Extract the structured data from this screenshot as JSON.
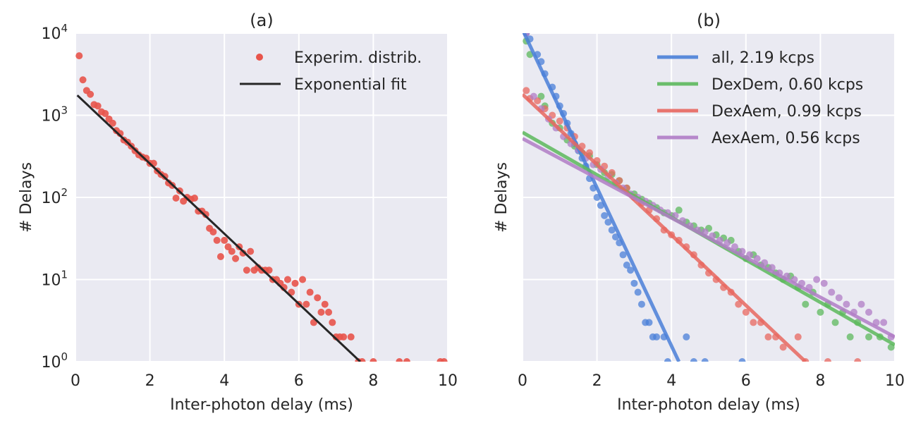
{
  "chart_data": [
    {
      "type": "scatter",
      "title": "(a)",
      "xlabel": "Inter-photon delay (ms)",
      "ylabel": "# Delays",
      "xlim": [
        0,
        10
      ],
      "ylim": [
        1,
        10000
      ],
      "yscale": "log",
      "grid": true,
      "legend_position": "top-right",
      "x_ticks": [
        "0",
        "2",
        "4",
        "6",
        "8",
        "10"
      ],
      "y_ticks": [
        {
          "value": 1,
          "base": "10",
          "exp": "0"
        },
        {
          "value": 10,
          "base": "10",
          "exp": "1"
        },
        {
          "value": 100,
          "base": "10",
          "exp": "2"
        },
        {
          "value": 1000,
          "base": "10",
          "exp": "3"
        },
        {
          "value": 10000,
          "base": "10",
          "exp": "4"
        }
      ],
      "series": [
        {
          "name": "Experim. distrib.",
          "kind": "points",
          "color": "#e8544b",
          "points": [
            [
              0.1,
              5300
            ],
            [
              0.2,
              2700
            ],
            [
              0.3,
              2000
            ],
            [
              0.4,
              1800
            ],
            [
              0.5,
              1350
            ],
            [
              0.6,
              1300
            ],
            [
              0.7,
              1100
            ],
            [
              0.8,
              1050
            ],
            [
              0.9,
              900
            ],
            [
              1.0,
              800
            ],
            [
              1.1,
              650
            ],
            [
              1.2,
              600
            ],
            [
              1.3,
              500
            ],
            [
              1.4,
              470
            ],
            [
              1.5,
              420
            ],
            [
              1.6,
              370
            ],
            [
              1.7,
              330
            ],
            [
              1.8,
              310
            ],
            [
              1.9,
              300
            ],
            [
              2.0,
              260
            ],
            [
              2.1,
              260
            ],
            [
              2.2,
              210
            ],
            [
              2.3,
              190
            ],
            [
              2.4,
              180
            ],
            [
              2.5,
              150
            ],
            [
              2.6,
              140
            ],
            [
              2.7,
              98
            ],
            [
              2.8,
              120
            ],
            [
              2.9,
              90
            ],
            [
              3.0,
              100
            ],
            [
              3.1,
              95
            ],
            [
              3.2,
              98
            ],
            [
              3.3,
              68
            ],
            [
              3.4,
              68
            ],
            [
              3.5,
              62
            ],
            [
              3.6,
              42
            ],
            [
              3.7,
              38
            ],
            [
              3.8,
              30
            ],
            [
              3.9,
              19
            ],
            [
              4.0,
              30
            ],
            [
              4.1,
              25
            ],
            [
              4.2,
              22
            ],
            [
              4.3,
              18
            ],
            [
              4.4,
              25
            ],
            [
              4.5,
              21
            ],
            [
              4.6,
              13
            ],
            [
              4.7,
              22
            ],
            [
              4.8,
              13
            ],
            [
              4.9,
              14
            ],
            [
              5.0,
              13
            ],
            [
              5.1,
              13
            ],
            [
              5.2,
              13
            ],
            [
              5.3,
              10
            ],
            [
              5.4,
              10
            ],
            [
              5.5,
              9
            ],
            [
              5.6,
              8
            ],
            [
              5.7,
              10
            ],
            [
              5.8,
              7
            ],
            [
              5.9,
              9
            ],
            [
              6.0,
              5
            ],
            [
              6.1,
              10
            ],
            [
              6.2,
              5
            ],
            [
              6.3,
              7
            ],
            [
              6.4,
              3
            ],
            [
              6.5,
              6
            ],
            [
              6.6,
              4
            ],
            [
              6.7,
              5
            ],
            [
              6.8,
              4
            ],
            [
              6.9,
              3
            ],
            [
              7.0,
              2
            ],
            [
              7.1,
              2
            ],
            [
              7.2,
              2
            ],
            [
              7.4,
              2
            ],
            [
              7.6,
              1
            ],
            [
              7.7,
              1
            ],
            [
              8.0,
              1
            ],
            [
              8.7,
              1
            ],
            [
              8.9,
              1
            ],
            [
              9.8,
              1
            ],
            [
              9.9,
              1
            ]
          ]
        },
        {
          "name": "Exponential fit",
          "kind": "line",
          "color": "#262626",
          "points": [
            [
              0.05,
              1750
            ],
            [
              7.65,
              1
            ]
          ]
        }
      ]
    },
    {
      "type": "scatter",
      "title": "(b)",
      "xlabel": "Inter-photon delay (ms)",
      "ylabel": "# Delays",
      "xlim": [
        0,
        10
      ],
      "ylim": [
        1,
        10000
      ],
      "yscale": "log",
      "grid": true,
      "legend_position": "top-right",
      "x_ticks": [
        "0",
        "2",
        "4",
        "6",
        "8",
        "10"
      ],
      "series": [
        {
          "name": "all, 2.19 kcps",
          "color": "#4a7fd8",
          "line": [
            [
              0,
              11000
            ],
            [
              4.2,
              1
            ]
          ],
          "points": [
            [
              0.1,
              10000
            ],
            [
              0.2,
              8500
            ],
            [
              0.4,
              5500
            ],
            [
              0.5,
              4500
            ],
            [
              0.6,
              3200
            ],
            [
              0.8,
              2200
            ],
            [
              0.9,
              1700
            ],
            [
              1.0,
              1300
            ],
            [
              1.1,
              1050
            ],
            [
              1.2,
              800
            ],
            [
              1.3,
              600
            ],
            [
              1.4,
              450
            ],
            [
              1.5,
              370
            ],
            [
              1.6,
              300
            ],
            [
              1.7,
              240
            ],
            [
              1.8,
              170
            ],
            [
              1.9,
              130
            ],
            [
              2.0,
              100
            ],
            [
              2.1,
              80
            ],
            [
              2.2,
              60
            ],
            [
              2.3,
              50
            ],
            [
              2.4,
              40
            ],
            [
              2.5,
              33
            ],
            [
              2.6,
              28
            ],
            [
              2.7,
              20
            ],
            [
              2.8,
              15
            ],
            [
              2.9,
              13
            ],
            [
              3.0,
              9
            ],
            [
              3.1,
              7
            ],
            [
              3.2,
              5
            ],
            [
              3.3,
              3
            ],
            [
              3.4,
              3
            ],
            [
              3.5,
              2
            ],
            [
              3.6,
              2
            ],
            [
              3.8,
              2
            ],
            [
              3.9,
              1
            ],
            [
              4.4,
              2
            ],
            [
              4.6,
              1
            ],
            [
              4.9,
              1
            ],
            [
              5.9,
              1
            ]
          ]
        },
        {
          "name": "DexDem, 0.60 kcps",
          "color": "#5cb85c",
          "line": [
            [
              0,
              620
            ],
            [
              10,
              1.6
            ]
          ],
          "points": [
            [
              0.1,
              8000
            ],
            [
              0.2,
              5500
            ],
            [
              0.5,
              1700
            ],
            [
              0.6,
              1300
            ],
            [
              0.8,
              800
            ],
            [
              1.0,
              700
            ],
            [
              1.2,
              500
            ],
            [
              1.4,
              420
            ],
            [
              1.6,
              350
            ],
            [
              1.8,
              320
            ],
            [
              2.0,
              250
            ],
            [
              2.2,
              200
            ],
            [
              2.4,
              190
            ],
            [
              2.6,
              160
            ],
            [
              2.8,
              130
            ],
            [
              3.0,
              110
            ],
            [
              3.2,
              95
            ],
            [
              3.4,
              85
            ],
            [
              3.6,
              75
            ],
            [
              3.8,
              65
            ],
            [
              4.0,
              60
            ],
            [
              4.2,
              70
            ],
            [
              4.4,
              50
            ],
            [
              4.6,
              45
            ],
            [
              4.8,
              40
            ],
            [
              5.0,
              42
            ],
            [
              5.2,
              35
            ],
            [
              5.4,
              32
            ],
            [
              5.6,
              30
            ],
            [
              5.8,
              22
            ],
            [
              6.0,
              18
            ],
            [
              6.2,
              20
            ],
            [
              6.4,
              15
            ],
            [
              6.6,
              14
            ],
            [
              6.8,
              12
            ],
            [
              7.0,
              10
            ],
            [
              7.2,
              11
            ],
            [
              7.4,
              8
            ],
            [
              7.6,
              5
            ],
            [
              7.8,
              7
            ],
            [
              8.0,
              4
            ],
            [
              8.2,
              5
            ],
            [
              8.4,
              3
            ],
            [
              8.6,
              4
            ],
            [
              8.8,
              2
            ],
            [
              9.0,
              3
            ],
            [
              9.3,
              2
            ],
            [
              9.6,
              2
            ],
            [
              9.9,
              1.5
            ]
          ]
        },
        {
          "name": "DexAem, 0.99 kcps",
          "color": "#e8675f",
          "line": [
            [
              0,
              1800
            ],
            [
              7.6,
              1
            ]
          ],
          "points": [
            [
              0.1,
              2000
            ],
            [
              0.2,
              1600
            ],
            [
              0.4,
              1500
            ],
            [
              0.6,
              1200
            ],
            [
              0.8,
              1000
            ],
            [
              1.0,
              850
            ],
            [
              1.2,
              700
            ],
            [
              1.4,
              550
            ],
            [
              1.6,
              420
            ],
            [
              1.8,
              350
            ],
            [
              2.0,
              280
            ],
            [
              2.2,
              240
            ],
            [
              2.4,
              200
            ],
            [
              2.6,
              160
            ],
            [
              2.8,
              130
            ],
            [
              3.0,
              100
            ],
            [
              3.2,
              85
            ],
            [
              3.4,
              70
            ],
            [
              3.6,
              55
            ],
            [
              3.8,
              40
            ],
            [
              4.0,
              35
            ],
            [
              4.2,
              30
            ],
            [
              4.4,
              25
            ],
            [
              4.6,
              20
            ],
            [
              4.8,
              15
            ],
            [
              5.0,
              12
            ],
            [
              5.2,
              10
            ],
            [
              5.4,
              8
            ],
            [
              5.6,
              7
            ],
            [
              5.8,
              5
            ],
            [
              6.0,
              4
            ],
            [
              6.2,
              3
            ],
            [
              6.4,
              3
            ],
            [
              6.6,
              2
            ],
            [
              6.8,
              2
            ],
            [
              7.0,
              1.5
            ],
            [
              7.4,
              2
            ],
            [
              7.6,
              1
            ],
            [
              8.2,
              1
            ],
            [
              9.0,
              1
            ]
          ]
        },
        {
          "name": "AexAem, 0.56 kcps",
          "color": "#b07cc6",
          "line": [
            [
              0,
              520
            ],
            [
              10,
              2
            ]
          ],
          "points": [
            [
              0.1,
              10000
            ],
            [
              0.3,
              1700
            ],
            [
              0.5,
              1200
            ],
            [
              0.7,
              900
            ],
            [
              0.9,
              700
            ],
            [
              1.1,
              550
            ],
            [
              1.3,
              450
            ],
            [
              1.5,
              380
            ],
            [
              1.7,
              300
            ],
            [
              1.9,
              250
            ],
            [
              2.1,
              220
            ],
            [
              2.3,
              180
            ],
            [
              2.5,
              150
            ],
            [
              2.7,
              130
            ],
            [
              2.9,
              110
            ],
            [
              3.1,
              100
            ],
            [
              3.3,
              90
            ],
            [
              3.5,
              80
            ],
            [
              3.7,
              70
            ],
            [
              3.9,
              65
            ],
            [
              4.1,
              60
            ],
            [
              4.3,
              52
            ],
            [
              4.5,
              45
            ],
            [
              4.7,
              40
            ],
            [
              4.9,
              38
            ],
            [
              5.1,
              34
            ],
            [
              5.3,
              30
            ],
            [
              5.5,
              28
            ],
            [
              5.7,
              25
            ],
            [
              5.9,
              22
            ],
            [
              6.1,
              20
            ],
            [
              6.3,
              18
            ],
            [
              6.5,
              16
            ],
            [
              6.7,
              14
            ],
            [
              6.9,
              12
            ],
            [
              7.1,
              11
            ],
            [
              7.3,
              10
            ],
            [
              7.5,
              9
            ],
            [
              7.7,
              8
            ],
            [
              7.9,
              10
            ],
            [
              8.1,
              9
            ],
            [
              8.3,
              7
            ],
            [
              8.5,
              6
            ],
            [
              8.7,
              5
            ],
            [
              8.9,
              4
            ],
            [
              9.1,
              5
            ],
            [
              9.3,
              4
            ],
            [
              9.5,
              3
            ],
            [
              9.7,
              3
            ],
            [
              9.9,
              2
            ]
          ]
        }
      ]
    }
  ]
}
